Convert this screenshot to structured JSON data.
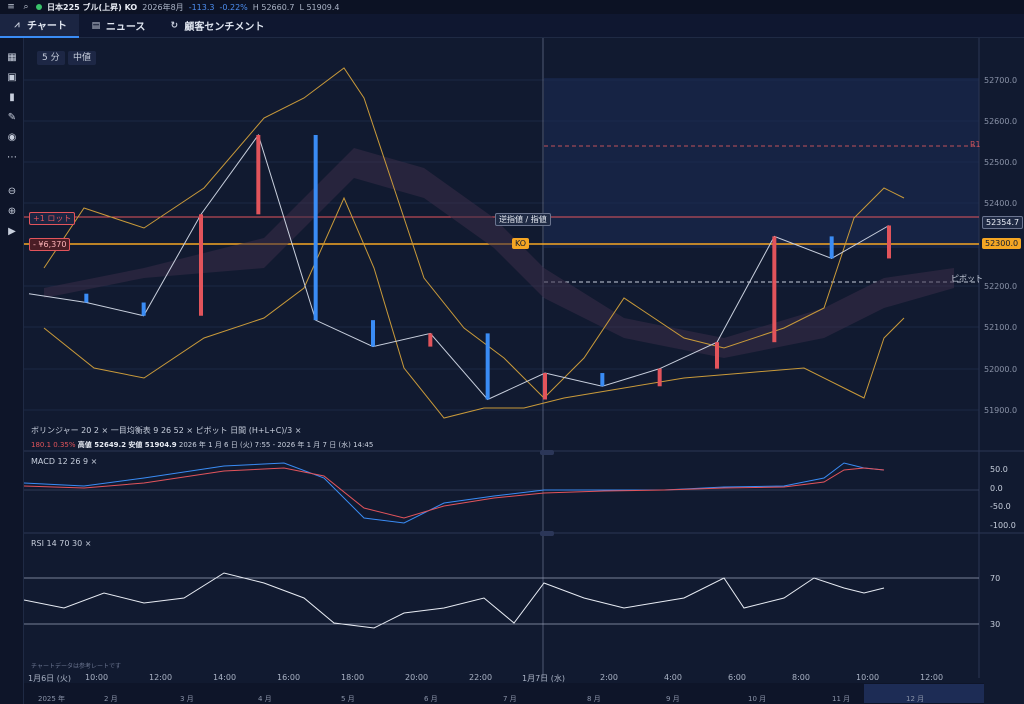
{
  "header": {
    "menu_icon": "hamburger-icon",
    "search_icon": "search-icon",
    "symbol": "日本225 ブル(上昇) KO",
    "expiry": "2026年8月",
    "change": "-113.3",
    "change_pct": "-0.22%",
    "high": "H 52660.7",
    "low": "L 51909.4"
  },
  "tabs": [
    {
      "label": "チャート",
      "icon": "chart-icon"
    },
    {
      "label": "ニュース",
      "icon": "news-icon"
    },
    {
      "label": "顧客センチメント",
      "icon": "refresh-icon"
    }
  ],
  "chart_controls": {
    "interval": "5 分",
    "price_type": "中値"
  },
  "left_tools": [
    "indicator-icon",
    "template-icon",
    "bar-chart-icon",
    "pencil-icon",
    "eye-icon",
    "more-icon",
    "zoom-out-icon",
    "zoom-in-icon",
    "play-icon"
  ],
  "price_axis": [
    "52700.0",
    "52600.0",
    "52500.0",
    "52400.0",
    "52200.0",
    "52100.0",
    "52000.0",
    "51900.0"
  ],
  "markers": {
    "current_price": "52354.7",
    "ko_price": "52300.0",
    "ko_label": "KO",
    "position_label": "+1 ロット",
    "pnl_label": "- ¥6,370",
    "order_button": "逆指値 / 指値",
    "pivot_label": "ピボット",
    "r1_label": "R1"
  },
  "legend": {
    "bollinger": "ボリンジャー 20 2",
    "ichimoku": "一目均衡表 9 26 52",
    "pivot": "ピボット 日間 (H+L+C)/3",
    "close_icon": "close-icon",
    "range_value": "180.1",
    "range_pct": "0.35%",
    "high_label": "高値 52649.2",
    "low_label": "安値 51904.9",
    "period": "2026 年 1 月 6 日 (火) 7:55 - 2026 年 1 月 7 日 (水) 14:45"
  },
  "macd": {
    "label": "MACD 12 26 9",
    "axis": [
      "50.0",
      "0.0",
      "-50.0",
      "-100.0"
    ]
  },
  "rsi": {
    "label": "RSI 14 70 30",
    "axis": [
      "70",
      "30"
    ]
  },
  "time_axis": [
    "1月6日 (火)",
    "10:00",
    "12:00",
    "14:00",
    "16:00",
    "18:00",
    "20:00",
    "22:00",
    "1月7日 (水)",
    "2:00",
    "4:00",
    "6:00",
    "8:00",
    "10:00",
    "12:00"
  ],
  "footnote": "チャートデータは参考レートです",
  "navigator_months": [
    "2025 年",
    "2 月",
    "3 月",
    "4 月",
    "5 月",
    "6 月",
    "7 月",
    "8 月",
    "9 月",
    "10 月",
    "11 月",
    "12 月"
  ],
  "colors": {
    "up": "#e2545b",
    "down": "#3a8cf5",
    "ko": "#f5a623",
    "background": "#111a30"
  },
  "chart_data": {
    "type": "line",
    "x": [
      "7:55",
      "10:00",
      "12:00",
      "14:00",
      "16:00",
      "18:00",
      "20:00",
      "22:00",
      "0:00",
      "2:00",
      "4:00",
      "6:00",
      "8:00",
      "9:00",
      "10:00",
      "10:45"
    ],
    "series": [
      {
        "values": [
          52200,
          52180,
          52150,
          52380,
          52560,
          52140,
          52080,
          52110,
          51960,
          52020,
          51990,
          52030,
          52090,
          52330,
          52280,
          52354.7
        ]
      }
    ],
    "ylim": [
      51850,
      52780
    ]
  }
}
